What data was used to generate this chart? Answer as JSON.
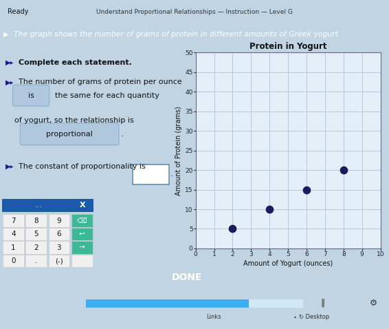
{
  "title_bar_text": "Understand Proportional Relationships — Instruction — Level G",
  "header_left": "Ready",
  "problem_text": "The graph shows the number of grams of protein in different amounts of Greek yogurt.",
  "complete_statement": "Complete each statement.",
  "statement1_part1": "The number of grams of protein per ounce",
  "statement1_is": "is",
  "statement1_part2": "the same for each quantity",
  "statement1_part3": "of yogurt, so the relationship is",
  "statement1_answer": "proportional",
  "statement2": "The constant of proportionality is",
  "chart_title": "Protein in Yogurt",
  "xlabel": "Amount of Yogurt (ounces)",
  "ylabel": "Amount of Protein (grams)",
  "xlim": [
    0,
    10
  ],
  "ylim": [
    0,
    50
  ],
  "xticks": [
    0,
    1,
    2,
    3,
    4,
    5,
    6,
    7,
    8,
    9,
    10
  ],
  "yticks": [
    0,
    5,
    10,
    15,
    20,
    25,
    30,
    35,
    40,
    45,
    50
  ],
  "data_x": [
    2,
    4,
    6,
    8
  ],
  "data_y": [
    5,
    10,
    15,
    20
  ],
  "dot_color": "#1a1a5e",
  "dot_size": 55,
  "bg_color": "#ccdce8",
  "chart_bg": "#e4eef6",
  "problem_bg": "#1a5aa8",
  "title_bar_bg": "#c8d8e4",
  "answer_box_color": "#b0c8de",
  "done_btn_color": "#5abf9e",
  "done_btn_text": "DONE",
  "calc_header_bg": "#1a5aa8",
  "calc_body_bg": "#e8e8e8",
  "calc_btn_teal": "#3db896",
  "fig_bg": "#c0d4e4",
  "taskbar_bg": "#c8d8e8",
  "scrollbar_bg": "#3ab0f0"
}
